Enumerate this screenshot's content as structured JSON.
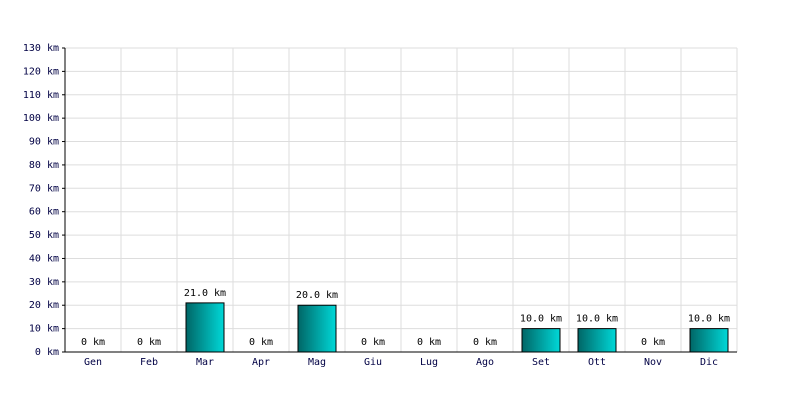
{
  "chart_data": {
    "type": "bar",
    "categories": [
      "Gen",
      "Feb",
      "Mar",
      "Apr",
      "Mag",
      "Giu",
      "Lug",
      "Ago",
      "Set",
      "Ott",
      "Nov",
      "Dic"
    ],
    "values": [
      0,
      0,
      21,
      0,
      20,
      0,
      0,
      0,
      10,
      10,
      0,
      10
    ],
    "value_labels": [
      "0 km",
      "0 km",
      "21.0 km",
      "0 km",
      "20.0 km",
      "0 km",
      "0 km",
      "0 km",
      "10.0 km",
      "10.0 km",
      "0 km",
      "10.0 km"
    ],
    "color": "#00d8d8",
    "ylim": [
      0,
      130
    ],
    "yticks": [
      {
        "value": 0,
        "label": "0 km"
      },
      {
        "value": 10,
        "label": "10 km"
      },
      {
        "value": 20,
        "label": "20 km"
      },
      {
        "value": 30,
        "label": "30 km"
      },
      {
        "value": 40,
        "label": "40 km"
      },
      {
        "value": 50,
        "label": "50 km"
      },
      {
        "value": 60,
        "label": "60 km"
      },
      {
        "value": 70,
        "label": "70 km"
      },
      {
        "value": 80,
        "label": "80 km"
      },
      {
        "value": 90,
        "label": "90 km"
      },
      {
        "value": 100,
        "label": "100 km"
      },
      {
        "value": 110,
        "label": "110 km"
      },
      {
        "value": 120,
        "label": "120 km"
      },
      {
        "value": 130,
        "label": "130 km"
      }
    ],
    "grid": true
  }
}
